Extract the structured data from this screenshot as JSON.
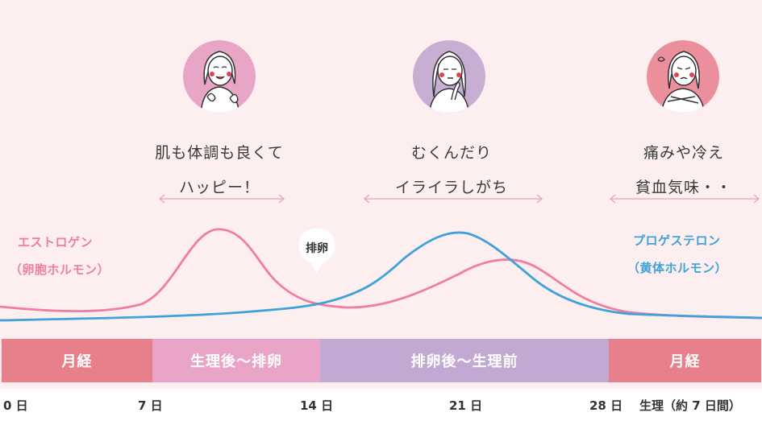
{
  "phases_top": [
    {
      "caption_line1": "肌も体調も良くて",
      "caption_line2": "ハッピー！",
      "circle_color": "#e8a6c7"
    },
    {
      "caption_line1": "むくんだり",
      "caption_line2": "イライラしがち",
      "circle_color": "#c7aed3"
    },
    {
      "caption_line1": "痛みや冷え",
      "caption_line2": "貧血気味・・",
      "circle_color": "#ec8f9c"
    }
  ],
  "hormones": {
    "estrogen": {
      "line1": "エストロゲン",
      "line2": "（卵胞ホルモン）",
      "color": "#f07ea2"
    },
    "progesterone": {
      "line1": "プロゲステロン",
      "line2": "（黄体ホルモン）",
      "color": "#3fa2da"
    }
  },
  "ovulation_bubble": "排卵",
  "phase_bar": [
    {
      "label": "月経",
      "color": "#e8808c"
    },
    {
      "label": "生理後〜排卵",
      "color": "#e9a4c8"
    },
    {
      "label": "排卵後〜生理前",
      "color": "#c2a9d1"
    },
    {
      "label": "月経",
      "color": "#e8808c"
    }
  ],
  "day_labels": [
    "0 日",
    "7 日",
    "14 日",
    "21 日",
    "28 日",
    "生理（約 7 日間）"
  ],
  "colors": {
    "background": "#fdeef0",
    "arrow": "#e8a3b2"
  }
}
